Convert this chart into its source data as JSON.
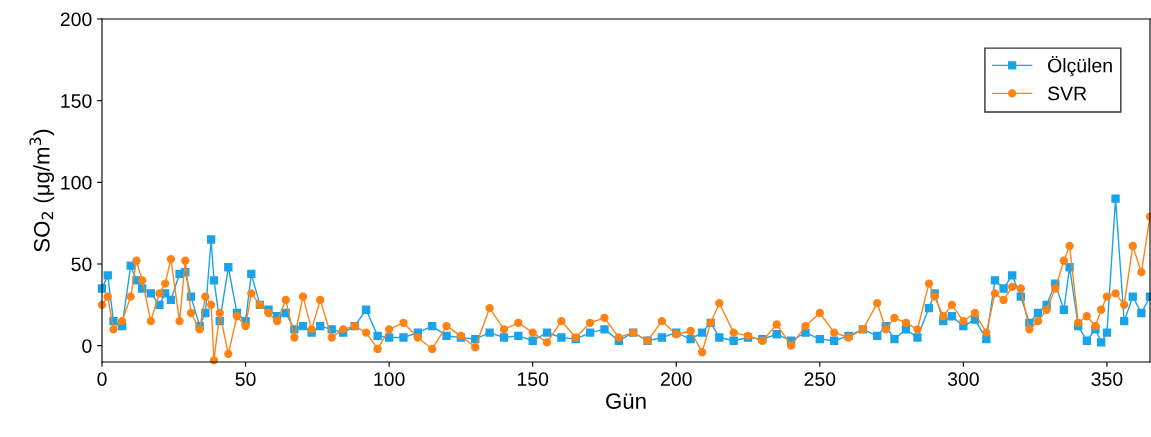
{
  "chart_data": {
    "type": "line",
    "xlabel": "Gün",
    "ylabel": "SO$_{2}$ (μg/m$^{3}$)",
    "x": [
      0,
      2,
      4,
      7,
      10,
      12,
      14,
      17,
      20,
      22,
      24,
      27,
      29,
      31,
      34,
      36,
      38,
      39,
      41,
      44,
      47,
      50,
      52,
      55,
      58,
      61,
      64,
      67,
      70,
      73,
      76,
      80,
      84,
      88,
      92,
      96,
      100,
      105,
      110,
      115,
      120,
      125,
      130,
      135,
      140,
      145,
      150,
      155,
      160,
      165,
      170,
      175,
      180,
      185,
      190,
      195,
      200,
      205,
      209,
      212,
      215,
      220,
      225,
      230,
      235,
      240,
      245,
      250,
      255,
      260,
      265,
      270,
      273,
      276,
      280,
      284,
      288,
      290,
      293,
      296,
      300,
      304,
      308,
      311,
      314,
      317,
      320,
      323,
      326,
      329,
      332,
      335,
      337,
      340,
      343,
      346,
      348,
      350,
      353,
      356,
      359,
      362,
      365
    ],
    "series": [
      {
        "name": "Ölçülen",
        "color": "#1aa3e8",
        "marker": "square",
        "values": [
          35,
          43,
          15,
          12,
          49,
          40,
          35,
          32,
          25,
          32,
          28,
          44,
          45,
          30,
          12,
          20,
          65,
          40,
          15,
          48,
          20,
          15,
          44,
          25,
          22,
          18,
          20,
          10,
          12,
          8,
          12,
          10,
          8,
          12,
          22,
          6,
          5,
          5,
          8,
          12,
          6,
          5,
          4,
          8,
          5,
          6,
          3,
          8,
          5,
          4,
          8,
          10,
          3,
          8,
          3,
          5,
          8,
          4,
          8,
          14,
          5,
          3,
          5,
          4,
          7,
          3,
          8,
          4,
          3,
          6,
          10,
          6,
          12,
          4,
          10,
          5,
          23,
          32,
          15,
          18,
          12,
          16,
          4,
          40,
          35,
          43,
          30,
          14,
          20,
          25,
          38,
          22,
          48,
          12,
          3,
          10,
          2,
          8,
          90,
          15,
          30,
          20,
          30
        ]
      },
      {
        "name": "SVR",
        "color": "#ff8214",
        "marker": "circle",
        "values": [
          25,
          30,
          10,
          15,
          30,
          52,
          40,
          15,
          32,
          38,
          53,
          15,
          52,
          20,
          10,
          30,
          25,
          -9,
          20,
          -5,
          18,
          12,
          32,
          25,
          20,
          15,
          28,
          5,
          30,
          10,
          28,
          5,
          10,
          12,
          8,
          -2,
          10,
          14,
          5,
          -2,
          12,
          6,
          -1,
          23,
          10,
          14,
          8,
          2,
          15,
          5,
          14,
          17,
          5,
          8,
          3,
          15,
          7,
          9,
          -4,
          14,
          26,
          8,
          6,
          3,
          13,
          0,
          12,
          20,
          8,
          5,
          10,
          26,
          10,
          17,
          14,
          10,
          38,
          30,
          18,
          25,
          15,
          20,
          8,
          32,
          28,
          36,
          35,
          10,
          15,
          22,
          35,
          52,
          61,
          14,
          18,
          12,
          22,
          30,
          32,
          25,
          61,
          45,
          79
        ]
      }
    ],
    "xlim": [
      0,
      365
    ],
    "ylim": [
      -10,
      200
    ],
    "xticks": [
      0,
      50,
      100,
      150,
      200,
      250,
      300,
      350
    ],
    "yticks": [
      0,
      50,
      100,
      150,
      200
    ],
    "legend": "top right",
    "grid": false
  }
}
